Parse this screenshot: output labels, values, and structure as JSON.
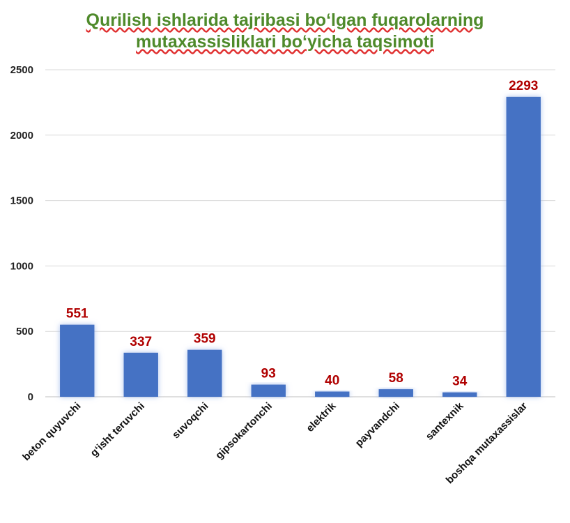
{
  "chart_data": {
    "type": "bar",
    "title_line1": "Qurilish ishlarida tajribasi bo‘lgan fuqarolarning",
    "title_line2": "mutaxassisliklari bo‘yicha taqsimoti",
    "categories": [
      "beton quyuvchi",
      "g‘isht teruvchi",
      "suvoqchi",
      "gipsokartonchi",
      "elektrik",
      "payvandchi",
      "santexnik",
      "boshqa mutaxassislar"
    ],
    "values": [
      551,
      337,
      359,
      93,
      40,
      58,
      34,
      2293
    ],
    "ylim": [
      0,
      2500
    ],
    "yticks": [
      0,
      500,
      1000,
      1500,
      2000,
      2500
    ],
    "grid": true,
    "bar_color": "#4472c4",
    "label_color": "#b00000",
    "title_color": "#4f8a2b"
  }
}
